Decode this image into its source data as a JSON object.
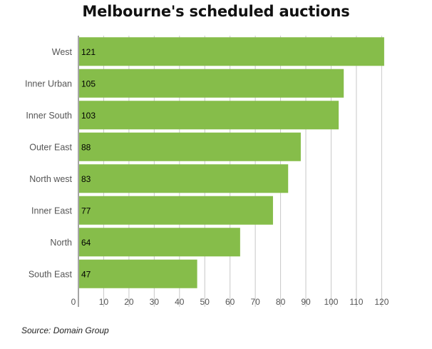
{
  "chart_data": {
    "type": "bar",
    "orientation": "horizontal",
    "title": "Melbourne's scheduled auctions",
    "xlabel": "",
    "ylabel": "",
    "categories": [
      "West",
      "Inner Urban",
      "Inner South",
      "Outer East",
      "North west",
      "Inner East",
      "North",
      "South East"
    ],
    "values": [
      121,
      105,
      103,
      88,
      83,
      77,
      64,
      47
    ],
    "xlim": [
      0,
      123
    ],
    "xticks": [
      0,
      10,
      20,
      30,
      40,
      50,
      60,
      70,
      80,
      90,
      100,
      110,
      120
    ],
    "grid": true,
    "legend": "none",
    "data_labels": true,
    "bar_color": "#86bd4a",
    "grid_color": "#c8c8c8",
    "axis_color": "#888888"
  },
  "source": "Source: Domain Group"
}
